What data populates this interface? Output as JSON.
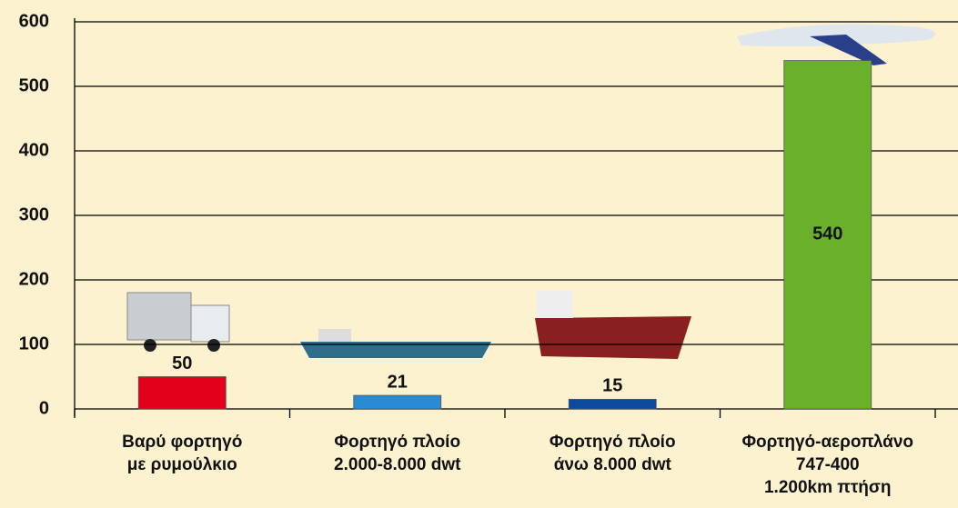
{
  "chart_data": {
    "type": "bar",
    "categories": [
      "Βαρύ φορτηγό\nμε ρυμούλκιο",
      "Φορτηγό πλοίο\n2.000-8.000 dwt",
      "Φορτηγό πλοίο\nάνω 8.000 dwt",
      "Φορτηγό-αεροπλάνο\n747-400\n1.200km πτήση"
    ],
    "values": [
      50,
      21,
      15,
      540
    ],
    "colors": [
      "#e2001a",
      "#2a8bd2",
      "#0c4a9c",
      "#6bb02a"
    ],
    "ylim": [
      0,
      600
    ],
    "yticks": [
      0,
      100,
      200,
      300,
      400,
      500,
      600
    ],
    "grid": true
  }
}
